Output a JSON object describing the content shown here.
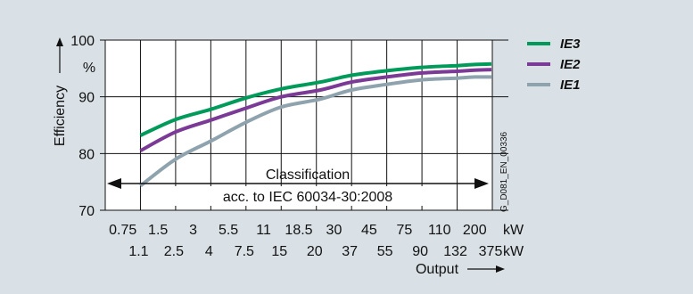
{
  "chart_data": {
    "type": "line",
    "ylabel": "Efficiency",
    "yunit": "%",
    "xlabel": "Output",
    "x_unit": "kW",
    "ylim": [
      70,
      100
    ],
    "yticks": [
      70,
      80,
      90,
      100
    ],
    "x_ticks_top": [
      "0.75",
      "1.5",
      "3",
      "5.5",
      "11",
      "18.5",
      "30",
      "45",
      "75",
      "110",
      "200"
    ],
    "x_ticks_bottom": [
      "1.1",
      "2.5",
      "4",
      "7.5",
      "15",
      "20",
      "37",
      "55",
      "90",
      "132",
      "375"
    ],
    "grid": true,
    "legend_position": "right",
    "series": [
      {
        "name": "IE3",
        "color": "#009a5a",
        "x": [
          1.1,
          2.5,
          4,
          7.5,
          15,
          22,
          37,
          55,
          90,
          132,
          200,
          375
        ],
        "y": [
          83.2,
          86.0,
          87.8,
          89.8,
          91.4,
          92.6,
          93.8,
          94.6,
          95.2,
          95.5,
          95.7,
          95.8
        ]
      },
      {
        "name": "IE2",
        "color": "#7a3a96",
        "x": [
          1.1,
          2.5,
          4,
          7.5,
          15,
          22,
          37,
          55,
          90,
          132,
          200,
          375
        ],
        "y": [
          80.5,
          83.8,
          85.9,
          88.0,
          90.0,
          91.2,
          92.6,
          93.5,
          94.2,
          94.5,
          94.7,
          94.8
        ]
      },
      {
        "name": "IE1",
        "color": "#8fa3ae",
        "x": [
          1.1,
          2.5,
          4,
          7.5,
          15,
          22,
          37,
          55,
          90,
          132,
          200,
          375
        ],
        "y": [
          74.3,
          79.0,
          82.2,
          85.5,
          88.2,
          89.6,
          91.2,
          92.2,
          93.0,
          93.3,
          93.5,
          93.5
        ]
      }
    ],
    "annotation": {
      "line1": "Classification",
      "line2": "acc. to IEC 60034-30:2008"
    },
    "side_label": "G_D081_EN_00336"
  }
}
